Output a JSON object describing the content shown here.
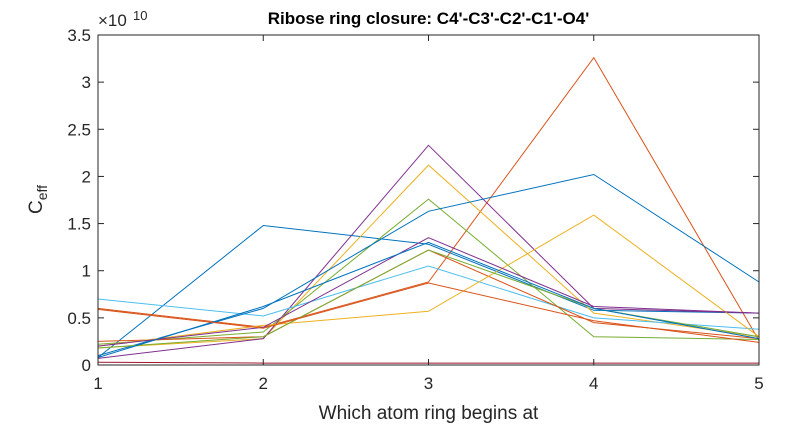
{
  "chart_data": {
    "type": "line",
    "title": "Ribose ring closure: C4'-C3'-C2'-C1'-O4'",
    "xlabel": "Which atom ring begins at",
    "ylabel_main": "C",
    "ylabel_sub": "eff",
    "exponent_base": "×10",
    "exponent_power": "10",
    "x": [
      1,
      2,
      3,
      4,
      5
    ],
    "xlim": [
      1,
      5
    ],
    "ylim": [
      0,
      3.5
    ],
    "xticks": [
      "1",
      "2",
      "3",
      "4",
      "5"
    ],
    "yticks": [
      "0",
      "0.5",
      "1",
      "1.5",
      "2",
      "2.5",
      "3",
      "3.5"
    ],
    "grid": false,
    "legend": "none",
    "series": [
      {
        "color": "#0072BD",
        "values": [
          0.08,
          1.48,
          1.28,
          0.58,
          0.55
        ]
      },
      {
        "color": "#D95319",
        "values": [
          0.6,
          0.4,
          0.88,
          3.26,
          0.26
        ]
      },
      {
        "color": "#EDB120",
        "values": [
          0.18,
          0.28,
          2.12,
          0.55,
          0.3
        ]
      },
      {
        "color": "#7E2F8E",
        "values": [
          0.07,
          0.28,
          2.33,
          0.6,
          0.55
        ]
      },
      {
        "color": "#77AC30",
        "values": [
          0.22,
          0.35,
          1.76,
          0.3,
          0.27
        ]
      },
      {
        "color": "#4DBEEE",
        "values": [
          0.7,
          0.52,
          1.05,
          0.5,
          0.38
        ]
      },
      {
        "color": "#A2142F",
        "values": [
          0.03,
          0.02,
          0.02,
          0.02,
          0.02
        ]
      },
      {
        "color": "#0072BD",
        "values": [
          0.1,
          0.6,
          1.63,
          2.02,
          0.88
        ]
      },
      {
        "color": "#D95319",
        "values": [
          0.25,
          0.3,
          1.22,
          0.45,
          0.28
        ]
      },
      {
        "color": "#EDB120",
        "values": [
          0.2,
          0.42,
          0.57,
          1.59,
          0.3
        ]
      },
      {
        "color": "#7E2F8E",
        "values": [
          0.2,
          0.4,
          1.35,
          0.62,
          0.55
        ]
      },
      {
        "color": "#77AC30",
        "values": [
          0.18,
          0.3,
          1.22,
          0.6,
          0.3
        ]
      },
      {
        "color": "#0072BD",
        "values": [
          0.08,
          0.62,
          1.3,
          0.6,
          0.28
        ]
      },
      {
        "color": "#D95319",
        "values": [
          0.59,
          0.39,
          0.87,
          0.47,
          0.24
        ]
      }
    ]
  }
}
